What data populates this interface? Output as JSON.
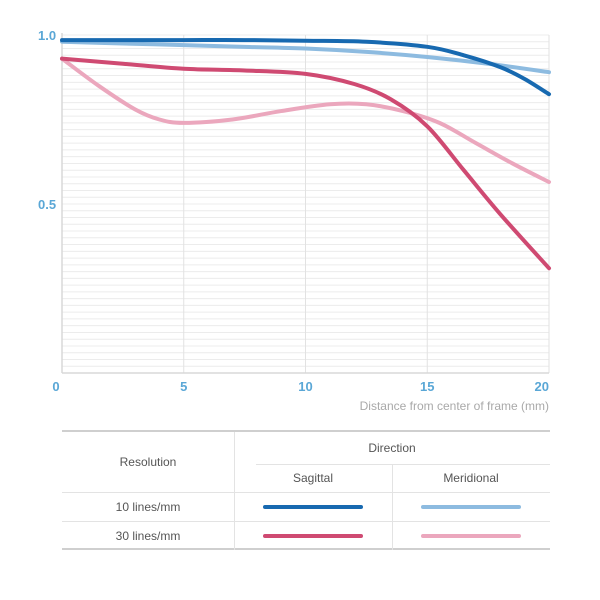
{
  "chart_data": {
    "type": "line",
    "x_axis": {
      "label": "Distance from center of frame (mm)",
      "range": [
        0,
        20
      ],
      "ticks": [
        0,
        5,
        10,
        15,
        20
      ]
    },
    "y_axis": {
      "range": [
        0,
        1.0
      ],
      "ticks": [
        0.5,
        1.0
      ],
      "tick_labels": [
        "0.5",
        "1.0"
      ]
    },
    "grid": "horizontal-minor",
    "colors": {
      "axis_label": "#5aa7d6",
      "xlabel": "#a9a9a9",
      "grid": "#ececec"
    },
    "series": [
      {
        "name": "10 lines/mm Sagittal",
        "color": "#1769b0",
        "x": [
          0,
          2.5,
          5,
          7.5,
          10,
          12.5,
          15,
          16.5,
          18,
          19,
          20
        ],
        "y": [
          0.985,
          0.985,
          0.985,
          0.985,
          0.983,
          0.98,
          0.965,
          0.94,
          0.905,
          0.87,
          0.825
        ]
      },
      {
        "name": "10 lines/mm Meridional",
        "color": "#8dbbe0",
        "x": [
          0,
          2.5,
          5,
          7.5,
          10,
          12.5,
          15,
          17.5,
          20
        ],
        "y": [
          0.98,
          0.975,
          0.97,
          0.965,
          0.96,
          0.95,
          0.935,
          0.915,
          0.89
        ]
      },
      {
        "name": "30 lines/mm Sagittal",
        "color": "#cf4a72",
        "x": [
          0,
          2.5,
          5,
          7.5,
          10,
          12,
          13.5,
          15,
          16.5,
          18,
          20
        ],
        "y": [
          0.93,
          0.915,
          0.9,
          0.895,
          0.885,
          0.855,
          0.81,
          0.73,
          0.6,
          0.47,
          0.31
        ]
      },
      {
        "name": "30 lines/mm Meridional",
        "color": "#eba7bd",
        "x": [
          0,
          1.5,
          3,
          4,
          5,
          7,
          9,
          11,
          12.5,
          14,
          15.5,
          17,
          18.5,
          20
        ],
        "y": [
          0.93,
          0.85,
          0.78,
          0.75,
          0.74,
          0.75,
          0.775,
          0.795,
          0.795,
          0.775,
          0.74,
          0.68,
          0.62,
          0.565
        ]
      }
    ]
  },
  "legend": {
    "resolution_header": "Resolution",
    "direction_header": "Direction",
    "columns": [
      "Sagittal",
      "Meridional"
    ],
    "rows": [
      {
        "label": "10 lines/mm",
        "sagittal_color": "#1769b0",
        "meridional_color": "#8dbbe0"
      },
      {
        "label": "30 lines/mm",
        "sagittal_color": "#cf4a72",
        "meridional_color": "#eba7bd"
      }
    ]
  }
}
